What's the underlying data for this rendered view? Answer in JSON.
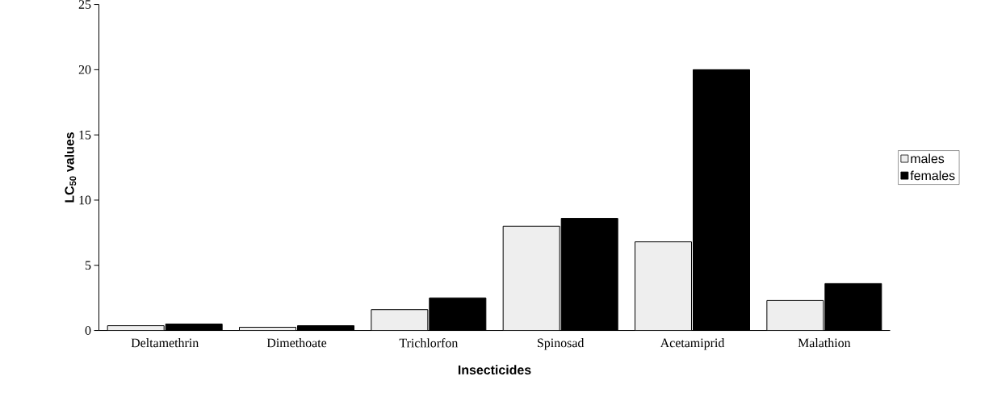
{
  "chart_data": {
    "type": "bar",
    "xlabel": "Insecticides",
    "ylabel": "LC$_{50}$ values",
    "categories": [
      "Deltamethrin",
      "Dimethoate",
      "Trichlorfon",
      "Spinosad",
      "Acetamiprid",
      "Malathion"
    ],
    "series": [
      {
        "name": "males",
        "color": "#eeeeee",
        "values": [
          0.37,
          0.25,
          1.6,
          8.0,
          6.8,
          2.3
        ]
      },
      {
        "name": "females",
        "color": "#000000",
        "values": [
          0.5,
          0.37,
          2.5,
          8.6,
          20.0,
          3.6
        ]
      }
    ],
    "ylim": [
      0,
      25
    ],
    "yticks": [
      0,
      5,
      10,
      15,
      20,
      25
    ],
    "grid": false,
    "legend": "right"
  }
}
